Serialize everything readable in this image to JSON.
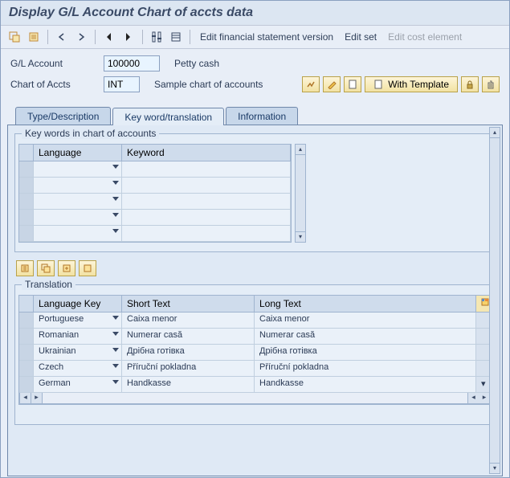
{
  "title": "Display G/L Account Chart of accts data",
  "toolbar": {
    "edit_fsv": "Edit financial statement version",
    "edit_set": "Edit set",
    "edit_cost": "Edit cost element"
  },
  "form": {
    "gl_label": "G/L Account",
    "gl_value": "100000",
    "gl_desc": "Petty cash",
    "coa_label": "Chart of Accts",
    "coa_value": "INT",
    "coa_desc": "Sample chart of accounts",
    "with_template": "With Template"
  },
  "tabs": {
    "t1": "Type/Description",
    "t2": "Key word/translation",
    "t3": "Information"
  },
  "keywords": {
    "group_title": "Key words in chart of accounts",
    "col_lang": "Language",
    "col_kw": "Keyword"
  },
  "translation": {
    "group_title": "Translation",
    "col_lk": "Language Key",
    "col_st": "Short Text",
    "col_lt": "Long Text",
    "rows": [
      {
        "lk": "Portuguese",
        "st": "Caixa menor",
        "lt": "Caixa menor"
      },
      {
        "lk": "Romanian",
        "st": "Numerar casă",
        "lt": "Numerar casă"
      },
      {
        "lk": "Ukrainian",
        "st": "Дрібна готівка",
        "lt": "Дрібна готівка"
      },
      {
        "lk": "Czech",
        "st": "Příruční pokladna",
        "lt": "Příruční pokladna"
      },
      {
        "lk": "German",
        "st": "Handkasse",
        "lt": "Handkasse"
      }
    ]
  }
}
